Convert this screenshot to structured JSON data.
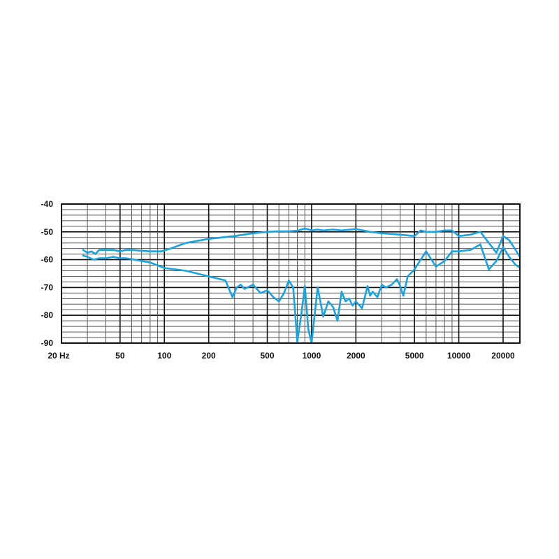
{
  "chart_data": {
    "type": "line",
    "xscale": "log",
    "xlim": [
      20,
      26000
    ],
    "ylim": [
      -90,
      -40
    ],
    "grid": true,
    "x_ticks": [
      {
        "value": 20,
        "label": "20 Hz"
      },
      {
        "value": 50,
        "label": "50"
      },
      {
        "value": 100,
        "label": "100"
      },
      {
        "value": 200,
        "label": "200"
      },
      {
        "value": 500,
        "label": "500"
      },
      {
        "value": 1000,
        "label": "1000"
      },
      {
        "value": 2000,
        "label": "2000"
      },
      {
        "value": 5000,
        "label": "5000"
      },
      {
        "value": 10000,
        "label": "10000"
      },
      {
        "value": 20000,
        "label": "20000"
      }
    ],
    "y_ticks": [
      {
        "value": -40,
        "label": "-40"
      },
      {
        "value": -50,
        "label": "-50"
      },
      {
        "value": -60,
        "label": "-60"
      },
      {
        "value": -70,
        "label": "-70"
      },
      {
        "value": -80,
        "label": "-80"
      },
      {
        "value": -90,
        "label": "-90"
      }
    ],
    "series": [
      {
        "color": "#1aa3dc",
        "x": [
          28,
          30,
          32,
          34,
          36,
          40,
          45,
          50,
          55,
          60,
          70,
          80,
          95,
          110,
          140,
          200,
          300,
          400,
          500,
          600,
          700,
          800,
          900,
          1000,
          1100,
          1200,
          1400,
          1600,
          2000,
          2500,
          3000,
          4000,
          5000,
          5500,
          6000,
          7000,
          8000,
          9000,
          10000,
          12000,
          14000,
          16000,
          18000,
          20000,
          22000,
          24000,
          26000
        ],
        "values": [
          -56.5,
          -57.5,
          -57,
          -58,
          -56.5,
          -56.5,
          -56.5,
          -57,
          -56.5,
          -56.5,
          -56.8,
          -57,
          -57,
          -56,
          -54,
          -52.5,
          -51.5,
          -50.5,
          -50,
          -49.8,
          -49.8,
          -49.6,
          -48.8,
          -49.5,
          -49.2,
          -49.5,
          -49.2,
          -49.5,
          -49,
          -50,
          -50.5,
          -51,
          -51.5,
          -49.5,
          -50,
          -50,
          -49.5,
          -49.5,
          -51.5,
          -51,
          -50,
          -54,
          -57.5,
          -51.5,
          -53,
          -56,
          -59
        ]
      },
      {
        "color": "#1aa3dc",
        "x": [
          28,
          30,
          33,
          36,
          40,
          45,
          50,
          55,
          60,
          70,
          80,
          100,
          140,
          200,
          260,
          290,
          310,
          330,
          350,
          400,
          450,
          500,
          550,
          600,
          650,
          700,
          750,
          800,
          850,
          900,
          950,
          1000,
          1100,
          1200,
          1300,
          1400,
          1500,
          1600,
          1700,
          1800,
          1900,
          2000,
          2200,
          2400,
          2500,
          2600,
          2800,
          3000,
          3200,
          3500,
          3800,
          4000,
          4200,
          4500,
          5000,
          6000,
          7000,
          8000,
          9000,
          10000,
          12000,
          14000,
          16000,
          18000,
          20000,
          22000,
          24000,
          26000
        ],
        "values": [
          -58.5,
          -59,
          -60,
          -59.5,
          -59.5,
          -59,
          -59.5,
          -59.5,
          -59.8,
          -60.5,
          -61,
          -63,
          -64,
          -66,
          -67.5,
          -73.5,
          -70,
          -69,
          -70.5,
          -69,
          -72,
          -71,
          -73.5,
          -75,
          -72,
          -67.5,
          -70,
          -89.5,
          -80,
          -69.5,
          -85,
          -90,
          -70,
          -80.5,
          -75,
          -77,
          -82,
          -71.5,
          -75,
          -74,
          -76.5,
          -75,
          -77.5,
          -69.5,
          -73,
          -71.5,
          -73.5,
          -69,
          -70,
          -69,
          -67,
          -69.5,
          -73,
          -66,
          -63.5,
          -57,
          -62.5,
          -60.5,
          -57,
          -57,
          -56.5,
          -54.5,
          -63.5,
          -60.5,
          -55.5,
          -59,
          -61.5,
          -63
        ]
      }
    ]
  }
}
